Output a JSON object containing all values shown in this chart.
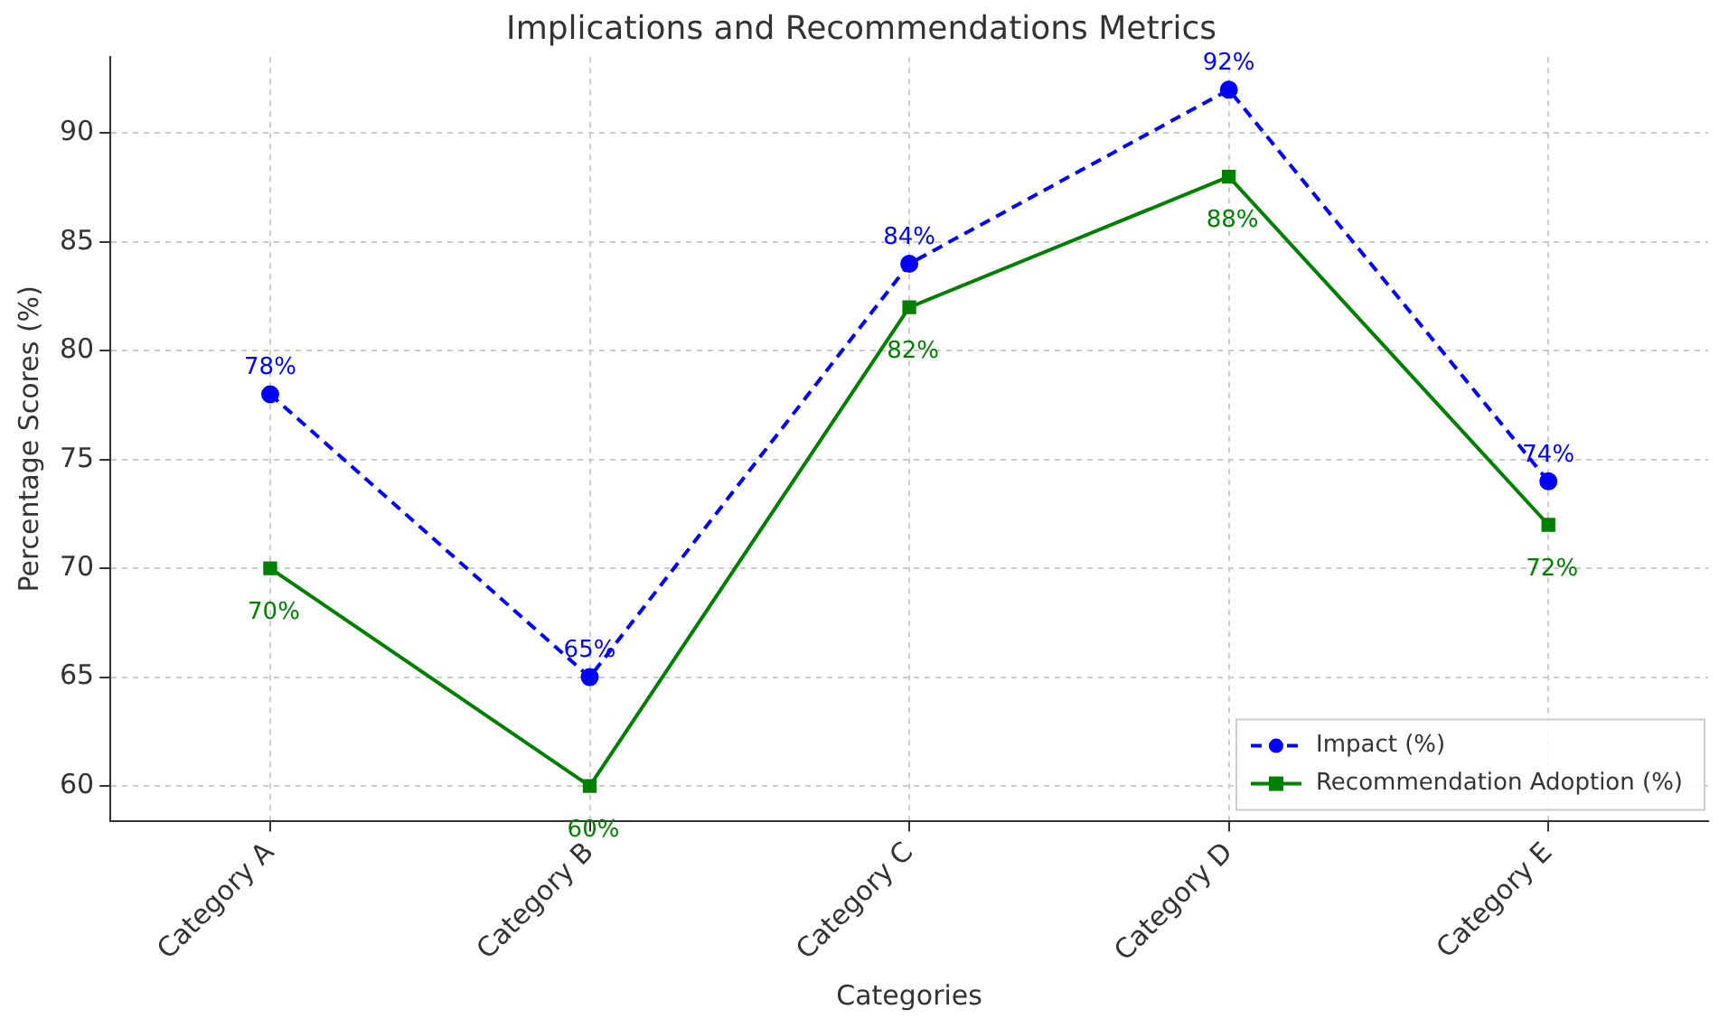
{
  "chart_data": {
    "type": "line",
    "title": "Implications and Recommendations Metrics",
    "xlabel": "Categories",
    "ylabel": "Percentage Scores (%)",
    "categories": [
      "Category A",
      "Category B",
      "Category C",
      "Category D",
      "Category E"
    ],
    "series": [
      {
        "name": "Impact (%)",
        "color": "#0000ff",
        "values": [
          78,
          65,
          84,
          92,
          74
        ],
        "marker": "circle",
        "line_style": "dashed",
        "value_labels": [
          "78%",
          "65%",
          "84%",
          "92%",
          "74%"
        ]
      },
      {
        "name": "Recommendation Adoption (%)",
        "color": "#008000",
        "values": [
          70,
          60,
          82,
          88,
          72
        ],
        "marker": "square",
        "line_style": "solid",
        "value_labels": [
          "70%",
          "60%",
          "82%",
          "88%",
          "72%"
        ]
      }
    ],
    "ylim": [
      58.4,
      93.5
    ],
    "yticks": [
      60,
      65,
      70,
      75,
      80,
      85,
      90
    ],
    "grid": true,
    "legend": "bottom right"
  }
}
